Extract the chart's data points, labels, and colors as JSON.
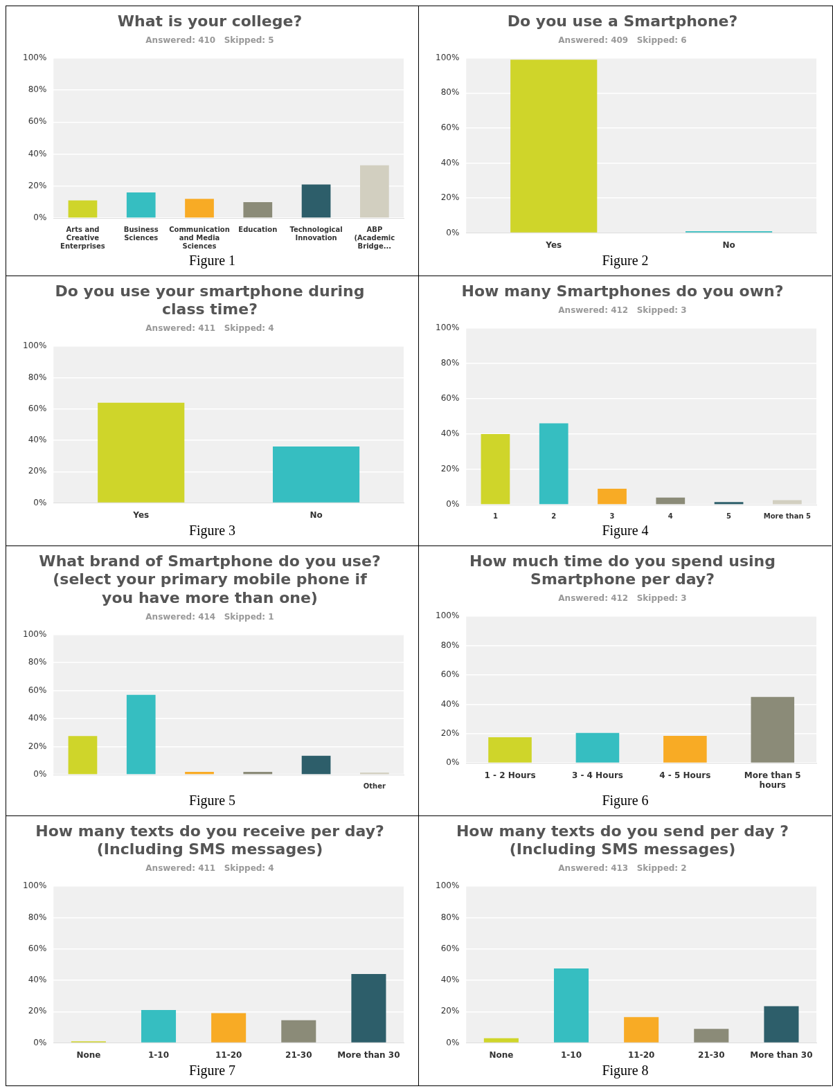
{
  "chart_data": [
    {
      "type": "bar",
      "title": "What is your college?",
      "subtitle": "Answered: 410   Skipped: 5",
      "categories": [
        "Arts and Creative Enterprises",
        "Business Sciences",
        "Communication and Media Sciences",
        "Education",
        "Technological Innovation",
        "ABP (Academic Bridge..."
      ],
      "values": [
        11,
        16,
        12,
        10,
        21,
        33
      ],
      "colors": [
        "#cfd52a",
        "#36bec1",
        "#f8ab25",
        "#8b8b78",
        "#2d5e6a",
        "#d2cfc0"
      ],
      "ylim": [
        0,
        100
      ],
      "yticks": [
        {
          "value": 0,
          "label": "0%"
        },
        {
          "value": 20,
          "label": "20%"
        },
        {
          "value": 40,
          "label": "40%"
        },
        {
          "value": 60,
          "label": "60%"
        },
        {
          "value": 80,
          "label": "80%"
        },
        {
          "value": 100,
          "label": "100%"
        }
      ],
      "grid": "y",
      "annotations": [
        "Figure 1"
      ]
    },
    {
      "type": "bar",
      "title": "Do you use a Smartphone?",
      "subtitle": "Answered: 409   Skipped: 6",
      "categories": [
        "Yes",
        "No"
      ],
      "values": [
        99,
        1
      ],
      "colors": [
        "#cfd52a",
        "#36bec1"
      ],
      "ylim": [
        0,
        100
      ],
      "yticks": [
        {
          "value": 0,
          "label": "0%"
        },
        {
          "value": 20,
          "label": "20%"
        },
        {
          "value": 40,
          "label": "40%"
        },
        {
          "value": 60,
          "label": "60%"
        },
        {
          "value": 80,
          "label": "80%"
        },
        {
          "value": 100,
          "label": "100%"
        }
      ],
      "grid": "y",
      "annotations": [
        "Figure 2"
      ]
    },
    {
      "type": "bar",
      "title": "Do you use your smartphone during class time?",
      "subtitle": "Answered: 411   Skipped: 4",
      "categories": [
        "Yes",
        "No"
      ],
      "values": [
        64,
        36
      ],
      "colors": [
        "#cfd52a",
        "#36bec1"
      ],
      "ylim": [
        0,
        100
      ],
      "yticks": [
        {
          "value": 0,
          "label": "0%"
        },
        {
          "value": 20,
          "label": "20%"
        },
        {
          "value": 40,
          "label": "40%"
        },
        {
          "value": 60,
          "label": "60%"
        },
        {
          "value": 80,
          "label": "80%"
        },
        {
          "value": 100,
          "label": "100%"
        }
      ],
      "grid": "y",
      "annotations": [
        "Figure 3"
      ]
    },
    {
      "type": "bar",
      "title": "How many Smartphones do you own?",
      "subtitle": "Answered: 412   Skipped: 3",
      "categories": [
        "1",
        "2",
        "3",
        "4",
        "5",
        "More than 5"
      ],
      "values": [
        40,
        46,
        9,
        4,
        1.5,
        2.5
      ],
      "colors": [
        "#cfd52a",
        "#36bec1",
        "#f8ab25",
        "#8b8b78",
        "#2d5e6a",
        "#d2cfc0"
      ],
      "ylim": [
        0,
        100
      ],
      "yticks": [
        {
          "value": 0,
          "label": "0%"
        },
        {
          "value": 20,
          "label": "20%"
        },
        {
          "value": 40,
          "label": "40%"
        },
        {
          "value": 60,
          "label": "60%"
        },
        {
          "value": 80,
          "label": "80%"
        },
        {
          "value": 100,
          "label": "100%"
        }
      ],
      "grid": "y",
      "annotations": [
        "Figure 4"
      ]
    },
    {
      "type": "bar",
      "title": "What brand of Smartphone do you use? (select your primary mobile phone if you have more than one)",
      "subtitle": "Answered: 414   Skipped: 1",
      "categories": [
        null,
        null,
        null,
        null,
        null,
        "Other"
      ],
      "values": [
        27.5,
        57,
        2,
        2,
        13.5,
        1.5
      ],
      "colors": [
        "#cfd52a",
        "#36bec1",
        "#f8ab25",
        "#8b8b78",
        "#2d5e6a",
        "#d2cfc0"
      ],
      "ylim": [
        0,
        100
      ],
      "yticks": [
        {
          "value": 0,
          "label": "0%"
        },
        {
          "value": 20,
          "label": "20%"
        },
        {
          "value": 40,
          "label": "40%"
        },
        {
          "value": 60,
          "label": "60%"
        },
        {
          "value": 80,
          "label": "80%"
        },
        {
          "value": 100,
          "label": "100%"
        }
      ],
      "grid": "y",
      "annotations": [
        "Figure 5"
      ]
    },
    {
      "type": "bar",
      "title": "How much time do you spend using Smartphone per day?",
      "subtitle": "Answered: 412   Skipped: 3",
      "categories": [
        "1 - 2 Hours",
        "3 - 4 Hours",
        "4 - 5 Hours",
        "More than 5 hours"
      ],
      "values": [
        17.5,
        20.5,
        18.5,
        45
      ],
      "colors": [
        "#cfd52a",
        "#36bec1",
        "#f8ab25",
        "#8b8b78"
      ],
      "ylim": [
        0,
        100
      ],
      "yticks": [
        {
          "value": 0,
          "label": "0%"
        },
        {
          "value": 20,
          "label": "20%"
        },
        {
          "value": 40,
          "label": "40%"
        },
        {
          "value": 60,
          "label": "60%"
        },
        {
          "value": 80,
          "label": "80%"
        },
        {
          "value": 100,
          "label": "100%"
        }
      ],
      "grid": "y",
      "annotations": [
        "Figure 6"
      ]
    },
    {
      "type": "bar",
      "title": "How many texts do you receive per day? (Including SMS messages)",
      "subtitle": "Answered: 411   Skipped: 4",
      "categories": [
        "None",
        "1-10",
        "11-20",
        "21-30",
        "More than 30"
      ],
      "values": [
        1,
        21,
        19,
        14.5,
        44
      ],
      "colors": [
        "#cfd52a",
        "#36bec1",
        "#f8ab25",
        "#8b8b78",
        "#2d5e6a"
      ],
      "ylim": [
        0,
        100
      ],
      "yticks": [
        {
          "value": 0,
          "label": "0%"
        },
        {
          "value": 20,
          "label": "20%"
        },
        {
          "value": 40,
          "label": "40%"
        },
        {
          "value": 60,
          "label": "60%"
        },
        {
          "value": 80,
          "label": "80%"
        },
        {
          "value": 100,
          "label": "100%"
        }
      ],
      "grid": "y",
      "annotations": [
        "Figure 7"
      ]
    },
    {
      "type": "bar",
      "title": "How many texts do you send per day ? (Including SMS messages)",
      "subtitle": "Answered: 413   Skipped: 2",
      "categories": [
        "None",
        "1-10",
        "11-20",
        "21-30",
        "More than 30"
      ],
      "values": [
        3,
        47.5,
        16.5,
        9,
        23.5
      ],
      "colors": [
        "#cfd52a",
        "#36bec1",
        "#f8ab25",
        "#8b8b78",
        "#2d5e6a"
      ],
      "ylim": [
        0,
        100
      ],
      "yticks": [
        {
          "value": 0,
          "label": "0%"
        },
        {
          "value": 20,
          "label": "20%"
        },
        {
          "value": 40,
          "label": "40%"
        },
        {
          "value": 60,
          "label": "60%"
        },
        {
          "value": 80,
          "label": "80%"
        },
        {
          "value": 100,
          "label": "100%"
        }
      ],
      "grid": "y",
      "annotations": [
        "Figure 8"
      ]
    }
  ]
}
